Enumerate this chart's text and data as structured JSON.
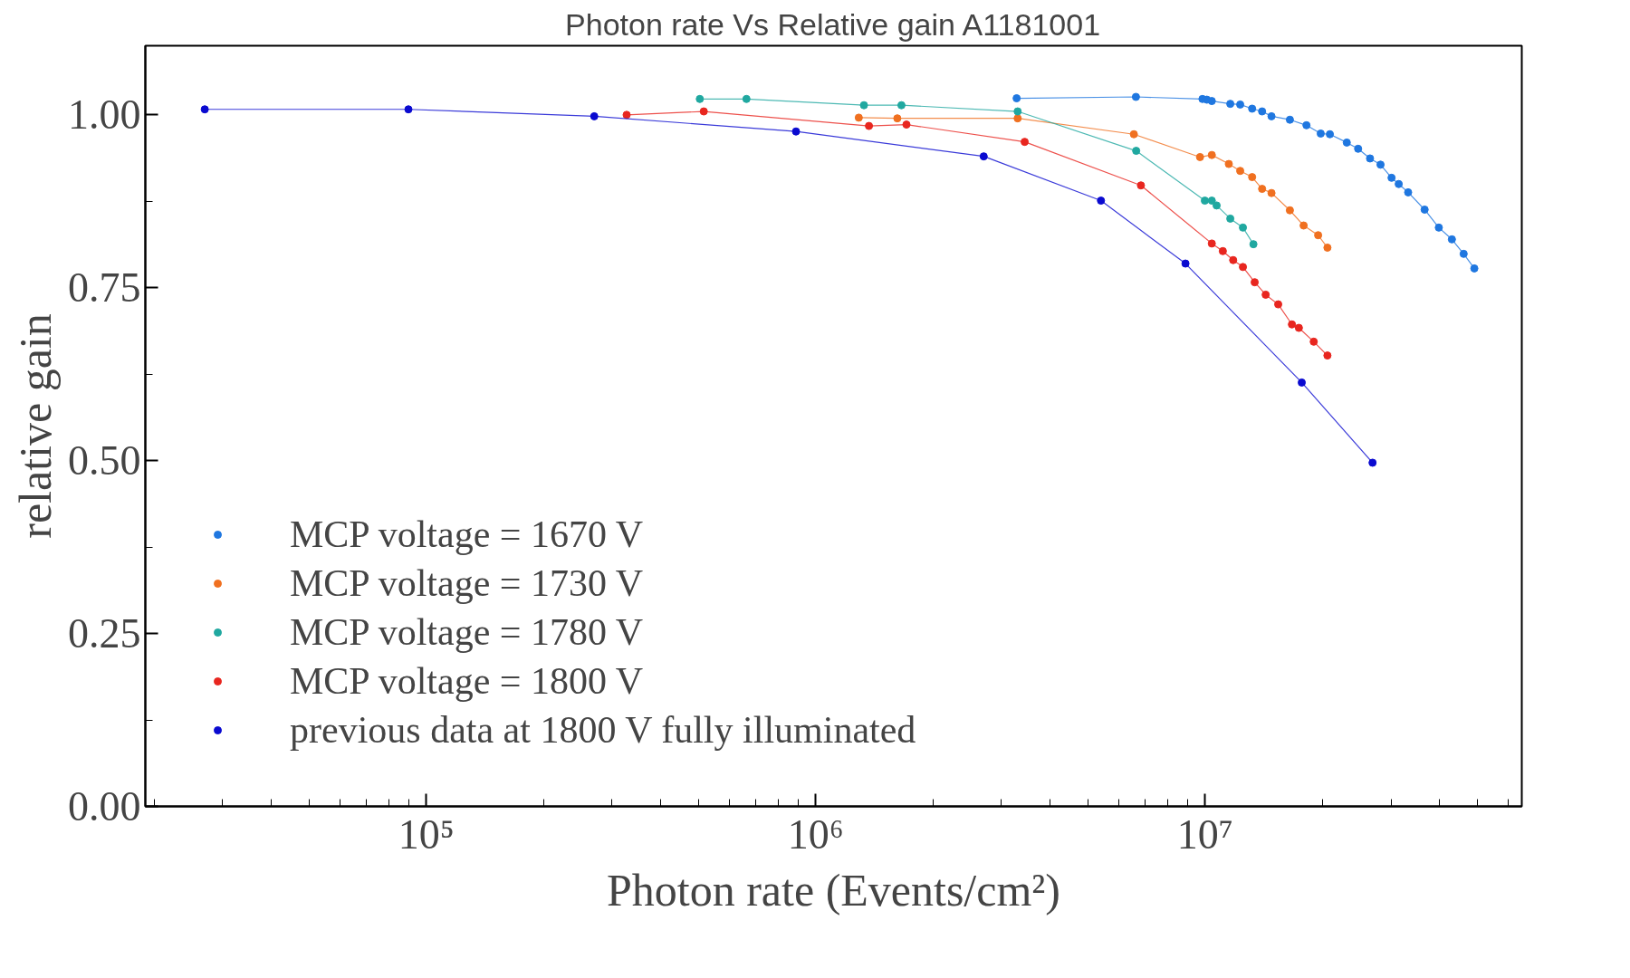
{
  "chart_data": {
    "type": "line",
    "title": "Photon rate Vs Relative gain A1181001",
    "xlabel": "Photon rate (Events/cm²)",
    "ylabel": "relative gain",
    "log": "x",
    "grid": false,
    "legend": "bottom left",
    "marker": "circle",
    "line_style": "solid",
    "xlim": [
      19000,
      65000000
    ],
    "xticks": [
      {
        "value": 100000,
        "label": "10⁵"
      },
      {
        "value": 1000000,
        "label": "10⁶"
      },
      {
        "value": 10000000,
        "label": "10⁷"
      }
    ],
    "ylim": [
      0,
      1.1
    ],
    "yticks": [
      {
        "value": 0,
        "label": "0.00"
      },
      {
        "value": 0.25,
        "label": "0.25"
      },
      {
        "value": 0.5,
        "label": "0.50"
      },
      {
        "value": 0.75,
        "label": "0.75"
      },
      {
        "value": 1,
        "label": "1.00"
      }
    ],
    "series": [
      {
        "name": "MCP voltage = 1670 V",
        "color": "#1f77e0",
        "x": [
          3280000,
          6640000,
          9840000,
          10100000,
          10400000,
          11600000,
          12300000,
          13200000,
          14000000,
          14800000,
          16500000,
          18200000,
          19800000,
          20900000,
          23100000,
          24700000,
          26500000,
          28200000,
          30100000,
          31400000,
          33200000,
          36600000,
          39800000,
          43000000,
          46100000,
          49100000
        ],
        "values": [
          1.024,
          1.026,
          1.023,
          1.022,
          1.02,
          1.016,
          1.015,
          1.009,
          1.005,
          0.998,
          0.993,
          0.985,
          0.973,
          0.972,
          0.96,
          0.951,
          0.937,
          0.928,
          0.909,
          0.9,
          0.888,
          0.863,
          0.837,
          0.82,
          0.799,
          0.778
        ]
      },
      {
        "name": "MCP voltage = 1730 V",
        "color": "#f07020",
        "x": [
          1290000,
          1620000,
          3300000,
          6560000,
          9700000,
          10400000,
          11500000,
          12300000,
          13200000,
          14000000,
          14800000,
          16500000,
          17900000,
          19500000,
          20600000
        ],
        "values": [
          0.996,
          0.995,
          0.995,
          0.972,
          0.939,
          0.942,
          0.929,
          0.919,
          0.91,
          0.893,
          0.887,
          0.862,
          0.84,
          0.826,
          0.808
        ]
      },
      {
        "name": "MCP voltage = 1780 V",
        "color": "#20a8a0",
        "x": [
          504000,
          664000,
          1330000,
          1660000,
          3300000,
          6650000,
          9980000,
          10400000,
          10700000,
          11600000,
          12500000,
          13300000
        ],
        "values": [
          1.023,
          1.023,
          1.014,
          1.014,
          1.005,
          0.948,
          0.876,
          0.876,
          0.869,
          0.85,
          0.837,
          0.813
        ]
      },
      {
        "name": "MCP voltage = 1800 V",
        "color": "#e8261f",
        "x": [
          327000,
          516000,
          1370000,
          1710000,
          3440000,
          6840000,
          10400000,
          11100000,
          11800000,
          12500000,
          13400000,
          14300000,
          15400000,
          16700000,
          17400000,
          19000000,
          20600000
        ],
        "values": [
          1.0,
          1.005,
          0.984,
          0.986,
          0.961,
          0.898,
          0.814,
          0.803,
          0.79,
          0.78,
          0.758,
          0.74,
          0.726,
          0.697,
          0.692,
          0.672,
          0.652
        ]
      },
      {
        "name": "previous data at 1800 V fully illuminated",
        "color": "#0a0ad0",
        "x": [
          27000,
          90000,
          270000,
          890000,
          2700000,
          5400000,
          8900000,
          17700000,
          26900000
        ],
        "values": [
          1.008,
          1.008,
          0.998,
          0.976,
          0.94,
          0.876,
          0.785,
          0.613,
          0.497
        ]
      }
    ]
  }
}
